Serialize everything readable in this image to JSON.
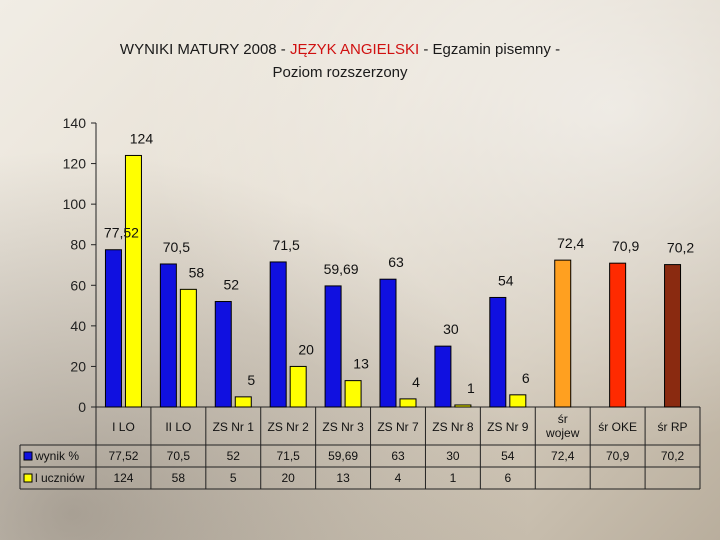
{
  "title_part1": "WYNIKI MATURY 2008 - ",
  "title_part2": "JĘZYK ANGIELSKI",
  "title_part3": "  - Egzamin pisemny -",
  "title_line2": "Poziom rozszerzony",
  "chart_data": {
    "type": "bar",
    "title": "WYNIKI MATURY 2008 - JĘZYK ANGIELSKI - Egzamin pisemny - Poziom rozszerzony",
    "categories": [
      "I LO",
      "II LO",
      "ZS Nr 1",
      "ZS Nr 2",
      "ZS Nr 3",
      "ZS Nr 7",
      "ZS Nr 8",
      "ZS Nr 9",
      "śr wojew",
      "śr  OKE",
      "śr  RP"
    ],
    "ylim": [
      0,
      140
    ],
    "yticks": [
      0,
      20,
      40,
      60,
      80,
      100,
      120,
      140
    ],
    "grid": false,
    "series": [
      {
        "name": "wynik %",
        "color": "#1010e0",
        "values": [
          77.52,
          70.5,
          52,
          71.5,
          59.69,
          63,
          30,
          54,
          72.4,
          70.9,
          70.2
        ],
        "labels": [
          "77,52",
          "70,5",
          "52",
          "71,5",
          "59,69",
          "63",
          "30",
          "54",
          "72,4",
          "70,9",
          "70,2"
        ],
        "bar_colors": [
          "#1010e0",
          "#1010e0",
          "#1010e0",
          "#1010e0",
          "#1010e0",
          "#1010e0",
          "#1010e0",
          "#1010e0",
          "#ffa020",
          "#ff2a00",
          "#8a2a10"
        ]
      },
      {
        "name": "l uczniów",
        "color": "#ffff00",
        "values": [
          124,
          58,
          5,
          20,
          13,
          4,
          1,
          6,
          null,
          null,
          null
        ],
        "labels": [
          "124",
          "58",
          "5",
          "20",
          "13",
          "4",
          "1",
          "6",
          "",
          "",
          ""
        ]
      }
    ]
  }
}
